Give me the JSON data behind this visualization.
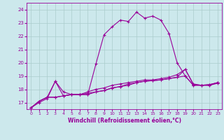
{
  "title": "",
  "xlabel": "Windchill (Refroidissement éolien,°C)",
  "xlim": [
    -0.5,
    23.5
  ],
  "ylim": [
    16.5,
    24.5
  ],
  "yticks": [
    17,
    18,
    19,
    20,
    21,
    22,
    23,
    24
  ],
  "xticks": [
    0,
    1,
    2,
    3,
    4,
    5,
    6,
    7,
    8,
    9,
    10,
    11,
    12,
    13,
    14,
    15,
    16,
    17,
    18,
    19,
    20,
    21,
    22,
    23
  ],
  "bg_color": "#cce8ec",
  "line_color": "#990099",
  "grid_color": "#aacccc",
  "series": [
    {
      "x": [
        0,
        1,
        2,
        3,
        4,
        5,
        6,
        7,
        8,
        9,
        10,
        11,
        12,
        13,
        14,
        15,
        16,
        17,
        18,
        19,
        20,
        21,
        22,
        23
      ],
      "y": [
        16.6,
        17.0,
        17.3,
        18.6,
        17.8,
        17.6,
        17.6,
        17.6,
        19.9,
        22.1,
        22.7,
        23.2,
        23.1,
        23.8,
        23.35,
        23.5,
        23.2,
        22.2,
        20.0,
        19.0,
        18.3,
        18.3,
        18.3,
        18.5
      ]
    },
    {
      "x": [
        0,
        1,
        2,
        3,
        4,
        5,
        6,
        7,
        8,
        9,
        10,
        11,
        12,
        13,
        14,
        15,
        16,
        17,
        18,
        19,
        20,
        21,
        22,
        23
      ],
      "y": [
        16.6,
        17.1,
        17.4,
        17.4,
        17.5,
        17.6,
        17.6,
        17.7,
        17.8,
        17.9,
        18.1,
        18.2,
        18.4,
        18.5,
        18.6,
        18.65,
        18.7,
        18.8,
        18.9,
        19.5,
        18.35,
        18.3,
        18.35,
        18.5
      ]
    },
    {
      "x": [
        0,
        1,
        2,
        3,
        4,
        5,
        6,
        7,
        8,
        9,
        10,
        11,
        12,
        13,
        14,
        15,
        16,
        17,
        18,
        19,
        20,
        21,
        22,
        23
      ],
      "y": [
        16.6,
        17.1,
        17.4,
        17.4,
        17.5,
        17.6,
        17.6,
        17.6,
        17.8,
        17.9,
        18.1,
        18.2,
        18.3,
        18.5,
        18.6,
        18.65,
        18.7,
        18.8,
        18.9,
        19.0,
        18.3,
        18.3,
        18.3,
        18.45
      ]
    },
    {
      "x": [
        0,
        1,
        2,
        3,
        4,
        5,
        6,
        7,
        8,
        9,
        10,
        11,
        12,
        13,
        14,
        15,
        16,
        17,
        18,
        19,
        20,
        21,
        22,
        23
      ],
      "y": [
        16.6,
        17.1,
        17.4,
        18.6,
        17.5,
        17.6,
        17.6,
        17.8,
        18.0,
        18.1,
        18.3,
        18.4,
        18.5,
        18.6,
        18.7,
        18.7,
        18.8,
        18.9,
        19.1,
        19.5,
        18.4,
        18.3,
        18.35,
        18.5
      ]
    }
  ]
}
